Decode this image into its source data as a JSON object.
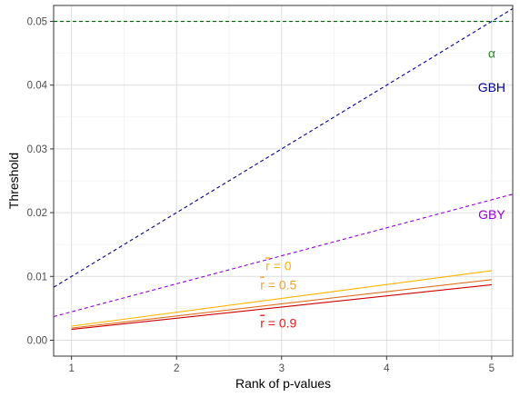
{
  "chart_data": {
    "type": "line",
    "xlabel": "Rank of p-values",
    "ylabel": "Threshold",
    "xlim": [
      0.83,
      5.2
    ],
    "ylim": [
      -0.0025,
      0.0525
    ],
    "x_ticks": [
      1,
      2,
      3,
      4,
      5
    ],
    "x_tick_labels": [
      "1",
      "2",
      "3",
      "4",
      "5"
    ],
    "y_ticks": [
      0,
      0.01,
      0.02,
      0.03,
      0.04,
      0.05
    ],
    "y_tick_labels": [
      "0.00",
      "0.01",
      "0.02",
      "0.03",
      "0.04",
      "0.05"
    ],
    "grid": true,
    "series": [
      {
        "color": "#006400",
        "dash": true,
        "x": [
          0.83,
          5.2
        ],
        "y": [
          0.05,
          0.05
        ]
      },
      {
        "color": "#00008B",
        "dash": true,
        "x": [
          0.83,
          5.2
        ],
        "y": [
          0.0083,
          0.052
        ]
      },
      {
        "color": "#9400D3",
        "dash": true,
        "x": [
          0.83,
          5.2
        ],
        "y": [
          0.0037,
          0.0229
        ]
      },
      {
        "color": "#FFB300",
        "dash": false,
        "x": [
          1,
          5
        ],
        "y": [
          0.0022,
          0.0109
        ]
      },
      {
        "color": "#E07020",
        "dash": false,
        "x": [
          1,
          5
        ],
        "y": [
          0.0019,
          0.0095
        ]
      },
      {
        "color": "#CC0000",
        "dash": false,
        "x": [
          1,
          5
        ],
        "y": [
          0.0017,
          0.0087
        ]
      }
    ],
    "annotations": [
      {
        "text": "α",
        "x": 5.0,
        "y": 0.045,
        "color": "#228B22"
      },
      {
        "text": "GBH",
        "x": 5.0,
        "y": 0.0397,
        "color": "#00008B"
      },
      {
        "text": "GBY",
        "x": 5.0,
        "y": 0.0197,
        "color": "#9400D3"
      },
      {
        "text": "r",
        "bar": true,
        "suffix": " = 0",
        "x": 2.97,
        "y": 0.0117,
        "color": "#FFB300"
      },
      {
        "text": "r",
        "bar": true,
        "suffix": " = 0.5",
        "x": 2.97,
        "y": 0.0087,
        "color": "#E8A33D"
      },
      {
        "text": "r",
        "bar": true,
        "suffix": " = 0.9",
        "x": 2.97,
        "y": 0.0027,
        "color": "#E31A1C"
      }
    ]
  }
}
